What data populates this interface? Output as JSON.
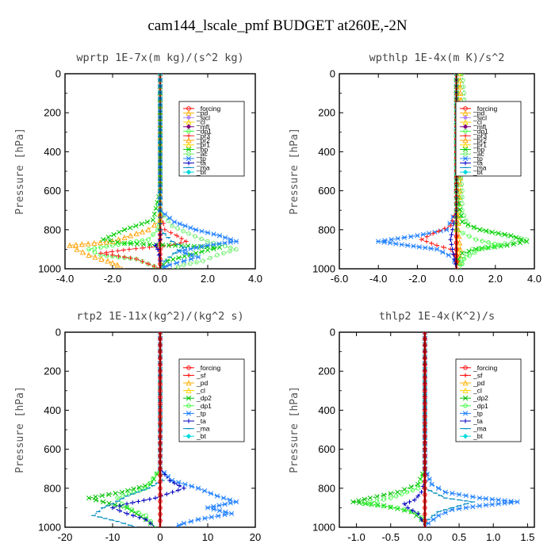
{
  "figure_title": "cam144_lscale_pmf  BUDGET at260E,-2N",
  "colors": {
    "_forcing": "#ff0000",
    "_pd": "#ffb000",
    "_sicl": "#b088ff",
    "_cl": "#ffd000",
    "_mfl": "#800080",
    "_dp1": "#40ff40",
    "_dp2": "#00c000",
    "_pr3": "#ff2020",
    "_pr2": "#ffa000",
    "_pr1": "#ffd800",
    "_bp": "#00cc00",
    "_ac": "#66ee66",
    "_tp": "#2080ff",
    "_ta": "#0000c0",
    "_ma": "#008cc0",
    "_bt": "#00d8e0",
    "_sf": "#ff0000",
    "black": "#000000"
  },
  "chart_data": [
    {
      "type": "line",
      "title": "wprtp  1E-7x(m kg)/(s^2 kg)",
      "ylabel": "Pressure [hPa]",
      "ylim": [
        1000,
        0
      ],
      "xlim": [
        -4.0,
        4.0
      ],
      "xticks": [
        -4.0,
        -2.0,
        0.0,
        2.0,
        4.0
      ],
      "xtick_labels": [
        "-4.0",
        "-2.0",
        "0.0",
        "2.0",
        "4.0"
      ],
      "yticks": [
        0,
        200,
        400,
        600,
        800,
        1000
      ],
      "legend": [
        "_forcing",
        "_pd",
        "_sicl",
        "_cl",
        "_mfl",
        "_dp1",
        "_pr3",
        "_pr2",
        "_pr1",
        "_bp",
        "_ac",
        "_tp",
        "_ta",
        "_ma",
        "_bt"
      ],
      "legend_position": "top-right",
      "series": [
        {
          "name": "_forcing",
          "y": [
            0,
            100,
            200,
            300,
            400,
            500,
            600,
            700,
            800,
            850,
            900,
            950,
            1000
          ],
          "x": [
            0,
            0,
            0,
            0,
            0,
            0,
            0,
            0,
            0,
            0,
            0,
            0,
            0
          ]
        },
        {
          "name": "_dp1",
          "y": [
            0,
            600,
            750,
            800,
            850,
            880,
            900,
            930,
            950,
            1000
          ],
          "x": [
            0,
            0,
            0,
            -0.1,
            -0.5,
            -2.0,
            -3.0,
            -2.5,
            -1.0,
            0
          ]
        },
        {
          "name": "_pr3",
          "y": [
            0,
            700,
            800,
            830,
            860,
            880,
            900,
            920,
            950,
            1000
          ],
          "x": [
            0,
            0,
            0.2,
            0.7,
            1.1,
            0.4,
            -1.3,
            -2.5,
            -1.0,
            0
          ]
        },
        {
          "name": "_pr2",
          "y": [
            0,
            750,
            800,
            860,
            880,
            900,
            930,
            960,
            980,
            1000
          ],
          "x": [
            0,
            0,
            -0.5,
            -2.0,
            -3.8,
            -3.5,
            -3.0,
            -2.2,
            -1.8,
            -1.5
          ]
        },
        {
          "name": "_bp",
          "y": [
            0,
            600,
            750,
            800,
            850,
            870,
            890,
            920,
            960,
            1000
          ],
          "x": [
            0,
            0,
            -0.3,
            -1.5,
            -2.4,
            -1.5,
            2.5,
            1.5,
            0.3,
            0
          ]
        },
        {
          "name": "_ac",
          "y": [
            0,
            700,
            780,
            820,
            860,
            900,
            930,
            960,
            980,
            1000
          ],
          "x": [
            0,
            0,
            0.5,
            1.2,
            2.0,
            3.2,
            2.4,
            1.8,
            1.0,
            0.5
          ]
        },
        {
          "name": "_tp",
          "y": [
            0,
            700,
            760,
            800,
            830,
            860,
            880,
            910,
            940,
            960,
            980,
            1000
          ],
          "x": [
            0,
            0,
            0.6,
            1.5,
            2.5,
            3.2,
            2.0,
            0.8,
            1.6,
            1.0,
            0.4,
            0
          ]
        },
        {
          "name": "_ta",
          "y": [
            0,
            800,
            850,
            880,
            900,
            930,
            960,
            1000
          ],
          "x": [
            0,
            0,
            0,
            -0.2,
            -0.1,
            -0.05,
            0,
            0
          ]
        },
        {
          "name": "_ma",
          "y": [
            0,
            800,
            860,
            890,
            920,
            960,
            1000
          ],
          "x": [
            0,
            0,
            0.5,
            1.0,
            0.6,
            0.2,
            0
          ]
        }
      ]
    },
    {
      "type": "line",
      "title": "wpthlp  1E-4x(m K)/s^2",
      "ylabel": "Pressure [hPa]",
      "ylim": [
        1000,
        0
      ],
      "xlim": [
        -6.0,
        4.0
      ],
      "xticks": [
        -6.0,
        -4.0,
        -2.0,
        0.0,
        2.0,
        4.0
      ],
      "xtick_labels": [
        "-6.0",
        "-4.0",
        "-2.0",
        "0.0",
        "2.0",
        "4.0"
      ],
      "yticks": [
        0,
        200,
        400,
        600,
        800,
        1000
      ],
      "legend": [
        "_forcing",
        "_pd",
        "_sicl",
        "_cl",
        "_mfl",
        "_dp1",
        "_pr3",
        "_pr2",
        "_pr1",
        "_bp",
        "_ac",
        "_tp",
        "_ta",
        "_ma",
        "_bt"
      ],
      "legend_position": "top-right",
      "series": [
        {
          "name": "_pr2",
          "y": [
            0,
            100,
            200,
            300,
            400,
            500,
            600,
            700,
            800,
            900,
            1000
          ],
          "x": [
            0.2,
            0.2,
            0.3,
            0.2,
            0.1,
            0.2,
            0.2,
            0.1,
            0.1,
            0.2,
            0.1
          ]
        },
        {
          "name": "_pr1",
          "y": [
            0,
            100,
            200,
            300,
            400,
            500,
            600,
            700,
            800,
            900,
            1000
          ],
          "x": [
            0.1,
            0.1,
            0.2,
            0.1,
            0.1,
            0.1,
            0.1,
            0.1,
            0,
            0.1,
            0
          ]
        },
        {
          "name": "_ac",
          "y": [
            0,
            100,
            200,
            300,
            400,
            500,
            600,
            700,
            780,
            820,
            850,
            870,
            900,
            950,
            1000
          ],
          "x": [
            0.3,
            0.4,
            0.4,
            0.3,
            0.2,
            0.2,
            0.3,
            0.3,
            0.6,
            2.0,
            3.6,
            2.5,
            0.8,
            0.3,
            0.2
          ]
        },
        {
          "name": "_bp",
          "y": [
            0,
            600,
            760,
            800,
            830,
            860,
            880,
            900,
            920,
            950,
            1000
          ],
          "x": [
            0,
            0,
            0.3,
            1.2,
            2.8,
            3.6,
            2.6,
            1.0,
            0.3,
            0.1,
            0
          ]
        },
        {
          "name": "_tp",
          "y": [
            0,
            700,
            800,
            830,
            860,
            880,
            900,
            930,
            960,
            1000
          ],
          "x": [
            0,
            0,
            -0.5,
            -2.0,
            -4.0,
            -2.5,
            -1.0,
            -0.4,
            -0.1,
            0
          ]
        },
        {
          "name": "_pr3",
          "y": [
            0,
            700,
            780,
            820,
            850,
            880,
            900,
            930,
            960,
            1000
          ],
          "x": [
            0,
            0,
            -0.3,
            -1.2,
            -1.8,
            -1.0,
            -0.3,
            -0.1,
            0,
            0
          ]
        },
        {
          "name": "_forcing",
          "y": [
            0,
            200,
            400,
            600,
            800,
            1000
          ],
          "x": [
            0,
            0,
            0,
            0,
            0,
            0
          ]
        },
        {
          "name": "_ta",
          "y": [
            0,
            700,
            800,
            850,
            900,
            950,
            1000
          ],
          "x": [
            0,
            0,
            -0.2,
            -0.3,
            -0.2,
            -0.1,
            0
          ]
        },
        {
          "name": "_dp1",
          "y": [
            0,
            800,
            850,
            880,
            900,
            950,
            1000
          ],
          "x": [
            0,
            0,
            1.0,
            2.3,
            1.2,
            0.4,
            0.2
          ]
        }
      ]
    },
    {
      "type": "line",
      "title": "rtp2  1E-11x(kg^2)/(kg^2 s)",
      "ylabel": "Pressure [hPa]",
      "ylim": [
        1000,
        0
      ],
      "xlim": [
        -20,
        20
      ],
      "xticks": [
        -20,
        -10,
        0,
        10,
        20
      ],
      "xtick_labels": [
        "-20",
        "-10",
        "0",
        "10",
        "20"
      ],
      "yticks": [
        0,
        200,
        400,
        600,
        800,
        1000
      ],
      "legend": [
        "_forcing",
        "_sf",
        "_pd",
        "_cl",
        "_dp2",
        "_dp1",
        "_tp",
        "_ta",
        "_ma",
        "_bt"
      ],
      "legend_position": "top-right",
      "series": [
        {
          "name": "_dp2",
          "y": [
            0,
            700,
            780,
            820,
            850,
            870,
            900,
            930,
            960,
            1000
          ],
          "x": [
            0,
            0,
            -2.0,
            -8.0,
            -15.0,
            -12.0,
            -7.0,
            -5.0,
            -3.0,
            -1.0
          ]
        },
        {
          "name": "_dp1",
          "y": [
            0,
            700,
            800,
            850,
            880,
            910,
            940,
            970,
            1000
          ],
          "x": [
            0,
            0,
            -3.0,
            -9.0,
            -8.0,
            -6.0,
            -3.0,
            -2.0,
            -1.0
          ]
        },
        {
          "name": "_tp",
          "y": [
            0,
            700,
            760,
            800,
            840,
            870,
            900,
            930,
            960,
            980,
            1000
          ],
          "x": [
            0,
            0,
            2.5,
            8.0,
            12.0,
            16.0,
            10.0,
            15.0,
            8.0,
            5.0,
            3.0
          ]
        },
        {
          "name": "_ta",
          "y": [
            0,
            700,
            760,
            800,
            850,
            880,
            900,
            930,
            960,
            1000
          ],
          "x": [
            0,
            0,
            2.0,
            5.0,
            -1.0,
            -7.0,
            -10.0,
            -7.0,
            -3.0,
            -1.0
          ]
        },
        {
          "name": "_ma",
          "y": [
            0,
            700,
            760,
            800,
            840,
            880,
            900,
            940,
            970,
            1000
          ],
          "x": [
            0,
            0,
            0.5,
            -2.5,
            -7.0,
            -10.0,
            -12.0,
            -14.0,
            -9.0,
            -5.0
          ]
        },
        {
          "name": "_forcing",
          "y": [
            0,
            200,
            400,
            600,
            800,
            1000
          ],
          "x": [
            0,
            0,
            0,
            0,
            0,
            0
          ]
        }
      ]
    },
    {
      "type": "line",
      "title": "thlp2  1E-4x(K^2)/s",
      "ylabel": "Pressure [hPa]",
      "ylim": [
        1000,
        0
      ],
      "xlim": [
        -1.25,
        1.6
      ],
      "xticks": [
        -1.0,
        -0.5,
        0.0,
        0.5,
        1.0,
        1.5
      ],
      "xtick_labels": [
        "-1.0",
        "-0.5",
        "0.0",
        "0.5",
        "1.0",
        "1.5"
      ],
      "yticks": [
        0,
        200,
        400,
        600,
        800,
        1000
      ],
      "legend": [
        "_forcing",
        "_sf",
        "_pd",
        "_cl",
        "_dp2",
        "_dp1",
        "_tp",
        "_ta",
        "_ma",
        "_bt"
      ],
      "legend_position": "top-right",
      "series": [
        {
          "name": "_dp2",
          "y": [
            0,
            700,
            780,
            820,
            850,
            870,
            890,
            920,
            960,
            1000
          ],
          "x": [
            0,
            0,
            -0.1,
            -0.4,
            -0.8,
            -1.05,
            -0.6,
            -0.2,
            -0.05,
            0
          ]
        },
        {
          "name": "_dp1",
          "y": [
            0,
            700,
            800,
            850,
            880,
            900,
            930,
            970,
            1000
          ],
          "x": [
            0,
            0,
            -0.1,
            -0.5,
            -0.9,
            -0.4,
            -0.1,
            0,
            0
          ]
        },
        {
          "name": "_tp",
          "y": [
            0,
            700,
            780,
            820,
            850,
            870,
            890,
            910,
            940,
            980,
            1000
          ],
          "x": [
            0,
            0,
            0.1,
            0.3,
            0.8,
            1.35,
            0.8,
            0.4,
            0.2,
            0.05,
            0
          ]
        },
        {
          "name": "_ta",
          "y": [
            0,
            760,
            820,
            860,
            880,
            900,
            930,
            960,
            1000
          ],
          "x": [
            0,
            0,
            -0.05,
            -0.15,
            -0.3,
            -0.25,
            -0.1,
            -0.05,
            0
          ]
        },
        {
          "name": "_ma",
          "y": [
            0,
            800,
            850,
            870,
            890,
            920,
            960,
            1000
          ],
          "x": [
            0,
            0,
            0.3,
            0.7,
            0.5,
            0.2,
            0.05,
            0
          ]
        },
        {
          "name": "_forcing",
          "y": [
            0,
            200,
            400,
            600,
            800,
            1000
          ],
          "x": [
            0,
            0,
            0,
            0,
            0,
            0
          ]
        }
      ]
    }
  ]
}
